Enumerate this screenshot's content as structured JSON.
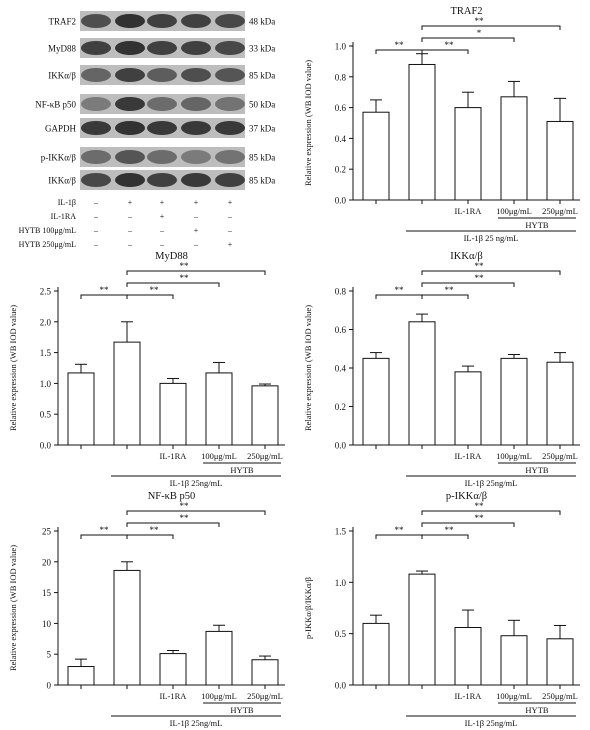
{
  "western_blot": {
    "bands": [
      {
        "protein": "TRAF2",
        "size": "48 kDa"
      },
      {
        "protein": "MyD88",
        "size": "33 kDa"
      },
      {
        "protein": "IKKα/β",
        "size": "85 kDa"
      },
      {
        "protein": "NF-κB p50",
        "size": "50 kDa"
      },
      {
        "protein": "GAPDH",
        "size": "37 kDa"
      },
      {
        "protein": "p-IKKα/β",
        "size": "85 kDa"
      },
      {
        "protein": "IKKα/β",
        "size": "85 kDa"
      }
    ],
    "conditions": [
      {
        "label": "IL-1β",
        "marks": [
          "–",
          "+",
          "+",
          "+",
          "+"
        ]
      },
      {
        "label": "IL-1RA",
        "marks": [
          "–",
          "–",
          "+",
          "–",
          "–"
        ]
      },
      {
        "label": "HYTB 100μg/mL",
        "marks": [
          "–",
          "–",
          "–",
          "+",
          "–"
        ]
      },
      {
        "label": "HYTB 250μg/mL",
        "marks": [
          "–",
          "–",
          "–",
          "–",
          "+"
        ]
      }
    ],
    "colors": {
      "band": "#2a2a2a",
      "membrane": "#bdbdbd"
    }
  },
  "chart_data": [
    {
      "type": "bar",
      "title": "TRAF2",
      "ylabel": "Relative expression (WB IOD value)",
      "ylim": [
        0,
        1.0
      ],
      "yticks": [
        "0.0",
        "0.2",
        "0.4",
        "0.6",
        "0.8",
        "1.0"
      ],
      "categories": [
        "",
        "",
        "IL-1RA",
        "100μg/mL",
        "250μg/mL"
      ],
      "values": [
        0.57,
        0.88,
        0.6,
        0.67,
        0.51
      ],
      "errors": [
        0.08,
        0.07,
        0.1,
        0.1,
        0.15
      ],
      "significance": [
        {
          "from": 0,
          "to": 1,
          "label": "**"
        },
        {
          "from": 1,
          "to": 2,
          "label": "**"
        },
        {
          "from": 1,
          "to": 3,
          "label": "*"
        },
        {
          "from": 1,
          "to": 4,
          "label": "**"
        }
      ],
      "group_label": "HYTB",
      "treatment_label": "IL-1β 25 ng/mL"
    },
    {
      "type": "bar",
      "title": "MyD88",
      "ylabel": "Relative expression (WB IOD value)",
      "ylim": [
        0,
        2.5
      ],
      "yticks": [
        "0.0",
        "0.5",
        "1.0",
        "1.5",
        "2.0",
        "2.5"
      ],
      "categories": [
        "",
        "",
        "IL-1RA",
        "100μg/mL",
        "250μg/mL"
      ],
      "values": [
        1.17,
        1.67,
        1.0,
        1.17,
        0.96
      ],
      "errors": [
        0.14,
        0.33,
        0.08,
        0.17,
        0.03
      ],
      "significance": [
        {
          "from": 0,
          "to": 1,
          "label": "**"
        },
        {
          "from": 1,
          "to": 2,
          "label": "**"
        },
        {
          "from": 1,
          "to": 3,
          "label": "**"
        },
        {
          "from": 1,
          "to": 4,
          "label": "**"
        }
      ],
      "group_label": "HYTB",
      "treatment_label": "IL-1β 25ng/mL"
    },
    {
      "type": "bar",
      "title": "IKKα/β",
      "ylabel": "Relative expression (WB IOD value)",
      "ylim": [
        0,
        0.8
      ],
      "yticks": [
        "0.0",
        "0.2",
        "0.4",
        "0.6",
        "0.8"
      ],
      "categories": [
        "",
        "",
        "IL-1RA",
        "100μg/mL",
        "250μg/mL"
      ],
      "values": [
        0.45,
        0.64,
        0.38,
        0.45,
        0.43
      ],
      "errors": [
        0.03,
        0.04,
        0.03,
        0.02,
        0.05
      ],
      "significance": [
        {
          "from": 0,
          "to": 1,
          "label": "**"
        },
        {
          "from": 1,
          "to": 2,
          "label": "**"
        },
        {
          "from": 1,
          "to": 3,
          "label": "**"
        },
        {
          "from": 1,
          "to": 4,
          "label": "**"
        }
      ],
      "group_label": "HYTB",
      "treatment_label": "IL-1β 25ng/mL"
    },
    {
      "type": "bar",
      "title": "NF-κB p50",
      "ylabel": "Relative expression (WB IOD value)",
      "ylim": [
        0,
        25
      ],
      "yticks": [
        "0",
        "5",
        "10",
        "15",
        "20",
        "25"
      ],
      "categories": [
        "",
        "",
        "IL-1RA",
        "100μg/mL",
        "250μg/mL"
      ],
      "values": [
        3.0,
        18.6,
        5.1,
        8.7,
        4.1
      ],
      "errors": [
        1.2,
        1.4,
        0.5,
        1.0,
        0.6
      ],
      "significance": [
        {
          "from": 0,
          "to": 1,
          "label": "**"
        },
        {
          "from": 1,
          "to": 2,
          "label": "**"
        },
        {
          "from": 1,
          "to": 3,
          "label": "**"
        },
        {
          "from": 1,
          "to": 4,
          "label": "**"
        }
      ],
      "group_label": "HYTB",
      "treatment_label": "IL-1β 25ng/mL"
    },
    {
      "type": "bar",
      "title": "p-IKKα/β",
      "ylabel": "p-IKKα/β/IKKα/β",
      "ylim": [
        0,
        1.5
      ],
      "yticks": [
        "0.0",
        "0.5",
        "1.0",
        "1.5"
      ],
      "categories": [
        "",
        "",
        "IL-1RA",
        "100μg/mL",
        "250μg/mL"
      ],
      "values": [
        0.6,
        1.08,
        0.56,
        0.48,
        0.45
      ],
      "errors": [
        0.08,
        0.03,
        0.17,
        0.15,
        0.13
      ],
      "significance": [
        {
          "from": 0,
          "to": 1,
          "label": "**"
        },
        {
          "from": 1,
          "to": 2,
          "label": "**"
        },
        {
          "from": 1,
          "to": 3,
          "label": "**"
        },
        {
          "from": 1,
          "to": 4,
          "label": "**"
        }
      ],
      "group_label": "HYTB",
      "treatment_label": "IL-1β 25ng/mL"
    }
  ]
}
